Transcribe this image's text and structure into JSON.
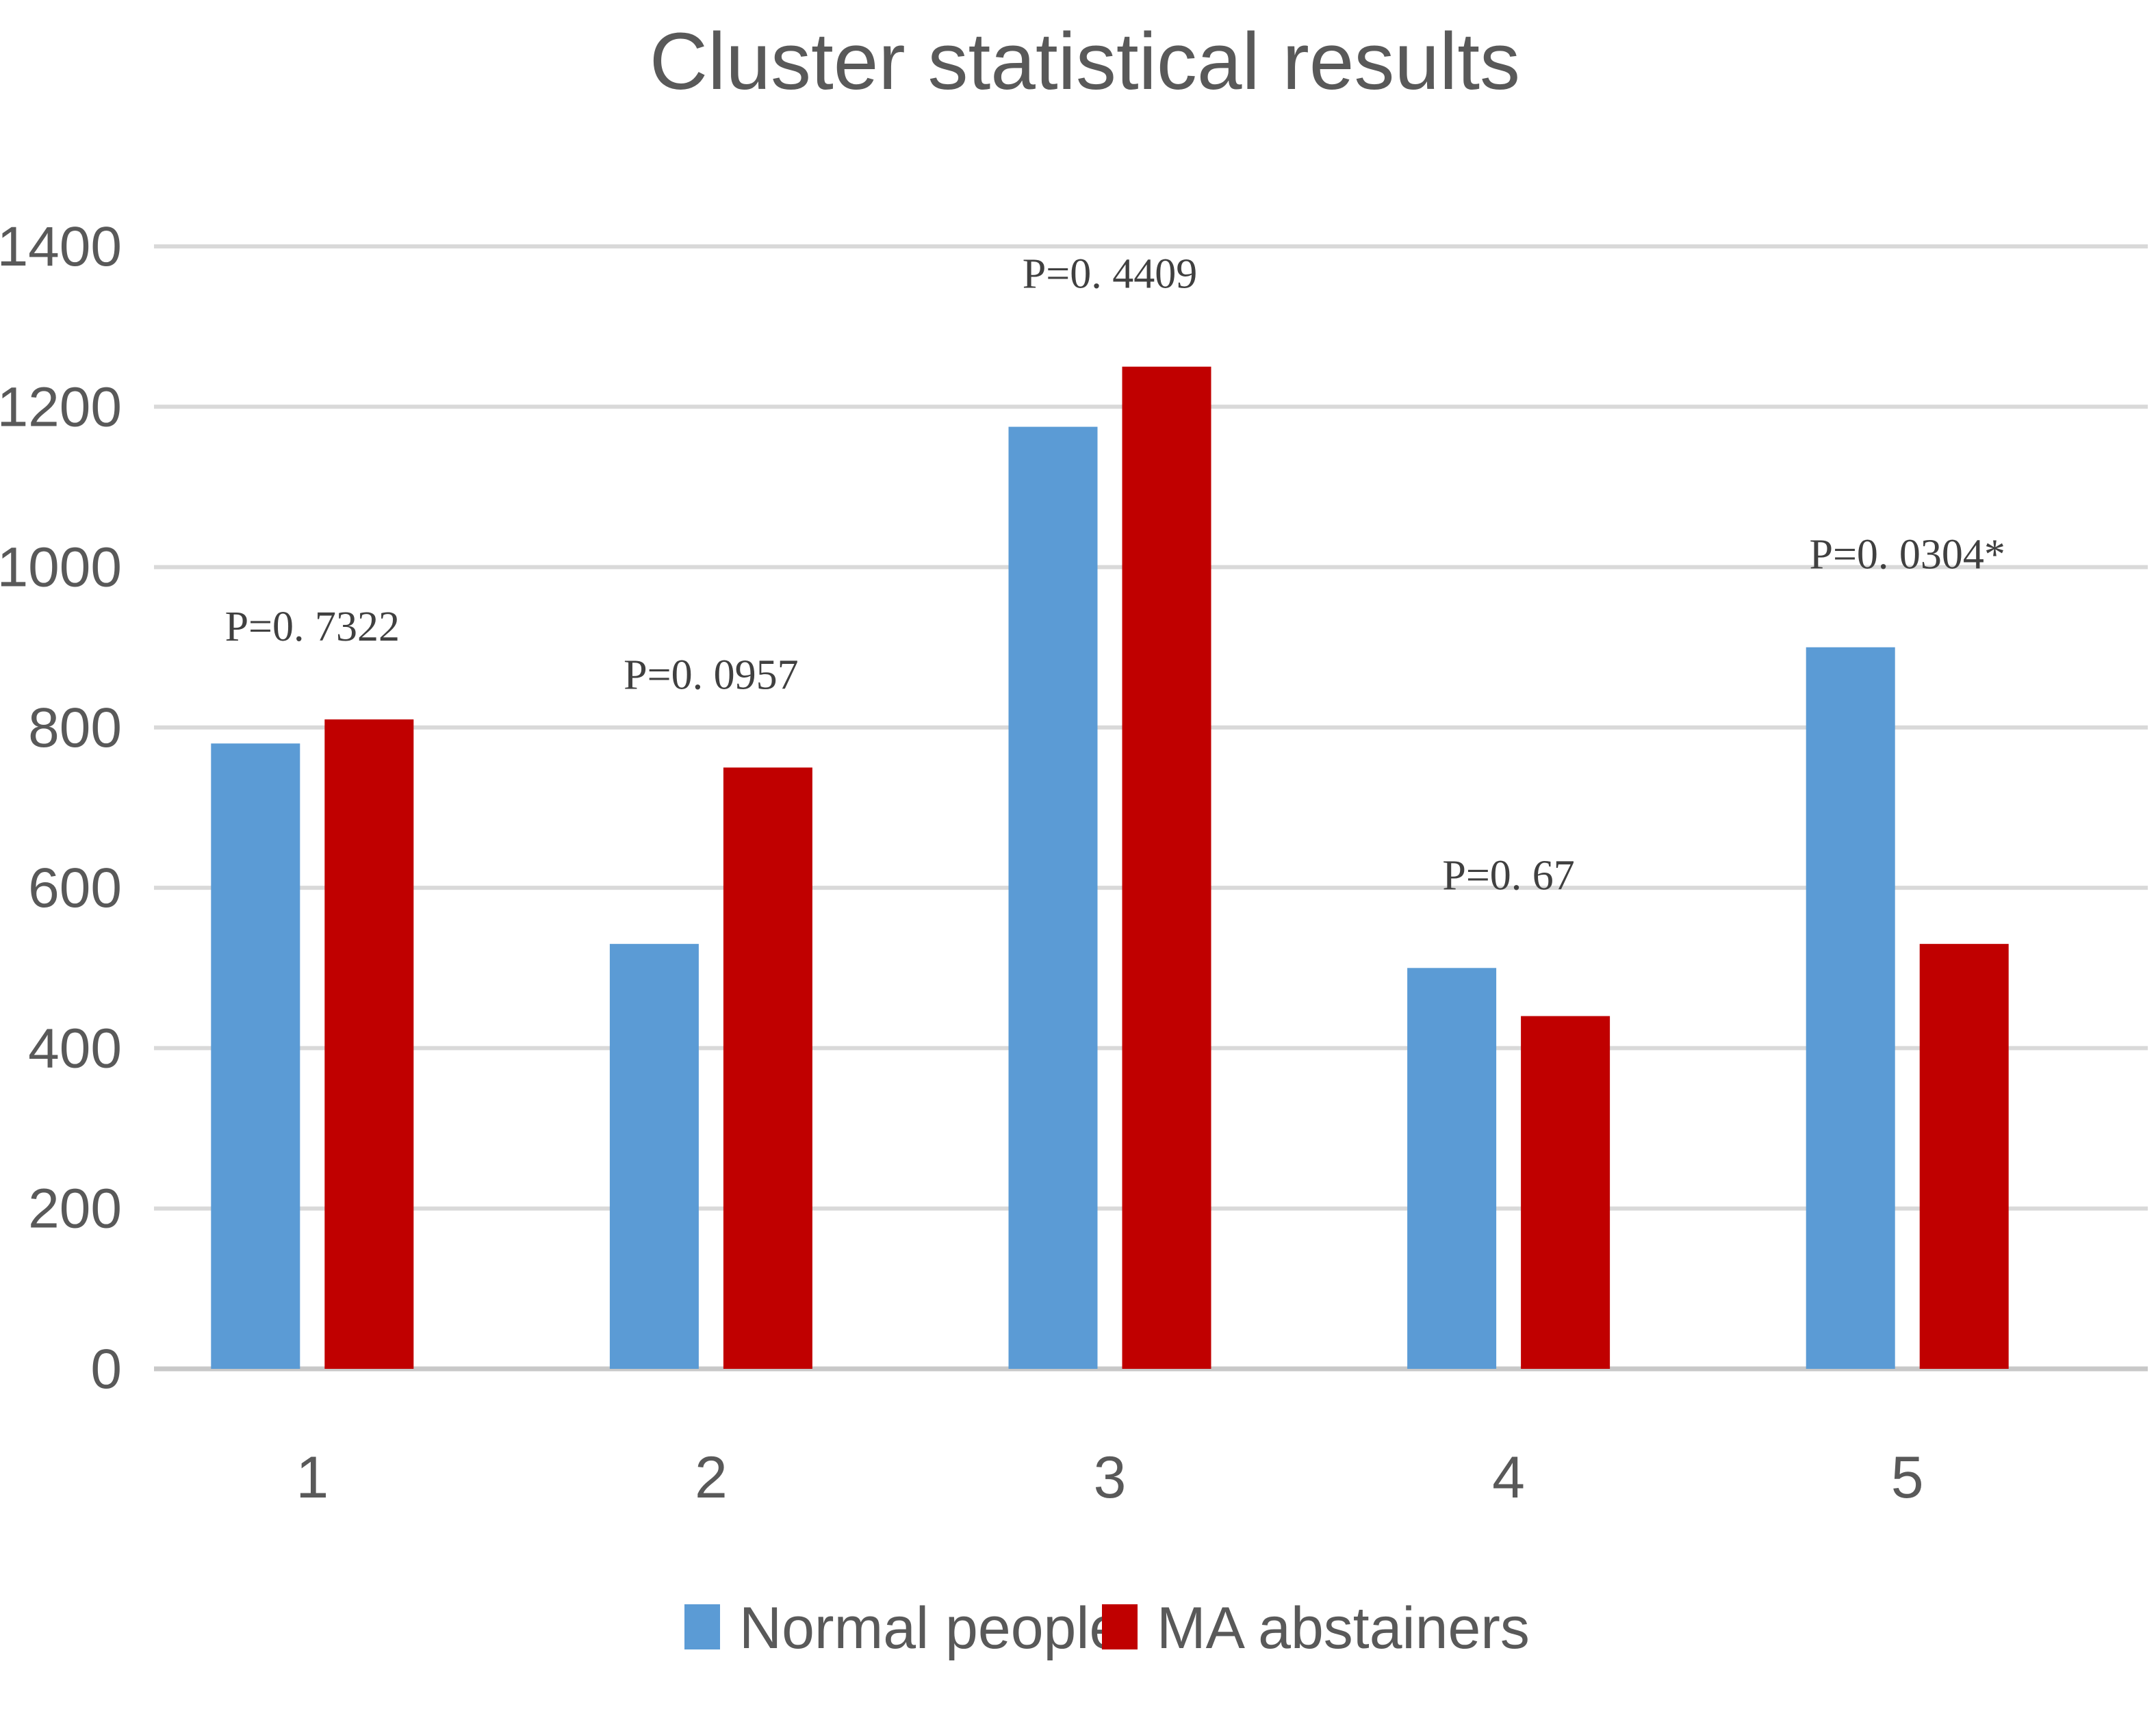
{
  "chart_data": {
    "type": "bar",
    "title": "Cluster statistical results",
    "xlabel": "",
    "ylabel": "",
    "categories": [
      "1",
      "2",
      "3",
      "4",
      "5"
    ],
    "series": [
      {
        "name": "Normal people",
        "color": "#5b9bd5",
        "values": [
          780,
          530,
          1175,
          500,
          900
        ]
      },
      {
        "name": "MA abstainers",
        "color": "#c00000",
        "values": [
          810,
          750,
          1250,
          440,
          530
        ]
      }
    ],
    "annotations": [
      "P=0. 7322",
      "P=0. 0957",
      "P=0. 4409",
      "P=0. 67",
      "P=0. 0304*"
    ],
    "ylim": [
      0,
      1400
    ],
    "yticks": [
      0,
      200,
      400,
      600,
      800,
      1000,
      1200,
      1400
    ],
    "grid": true,
    "legend_position": "bottom"
  }
}
